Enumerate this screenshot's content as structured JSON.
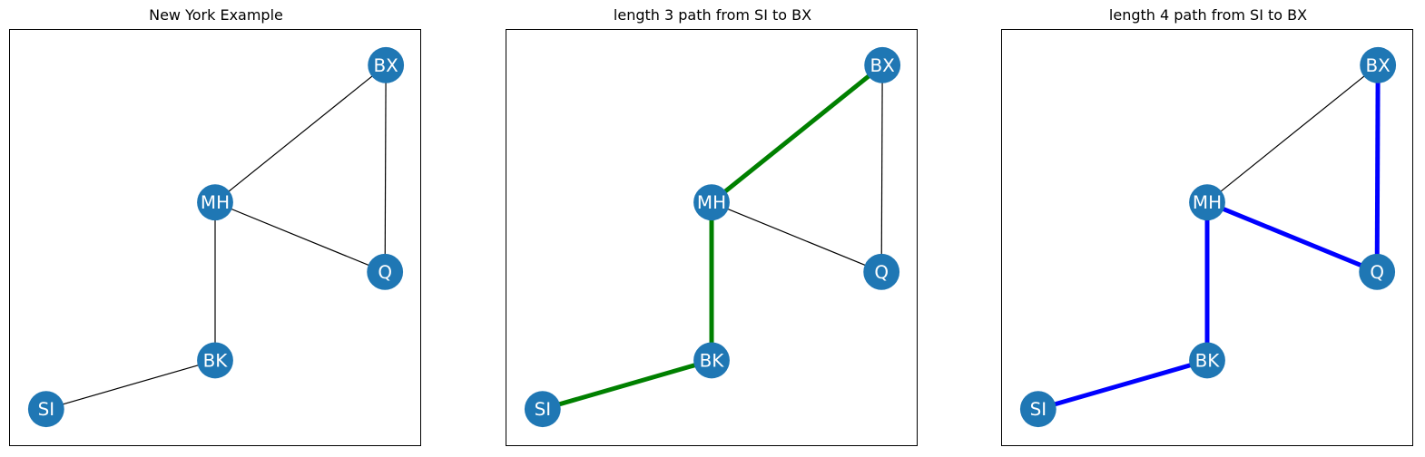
{
  "colors": {
    "node_fill": "#1f77b4",
    "node_label": "#ffffff",
    "base_edge": "#000000"
  },
  "nodes": [
    "BX",
    "MH",
    "Q",
    "BK",
    "SI"
  ],
  "edges": [
    [
      "MH",
      "BX"
    ],
    [
      "Q",
      "BX"
    ],
    [
      "MH",
      "Q"
    ],
    [
      "MH",
      "BK"
    ],
    [
      "BK",
      "SI"
    ]
  ],
  "panels": [
    {
      "title": "New York Example",
      "highlight_path": [],
      "highlight_color": ""
    },
    {
      "title": "length 3 path from SI to BX",
      "highlight_path": [
        "SI",
        "BK",
        "MH",
        "BX"
      ],
      "highlight_color": "#008000"
    },
    {
      "title": "length 4 path from SI to BX",
      "highlight_path": [
        "SI",
        "BK",
        "MH",
        "Q",
        "BX"
      ],
      "highlight_color": "#0000ff"
    }
  ]
}
